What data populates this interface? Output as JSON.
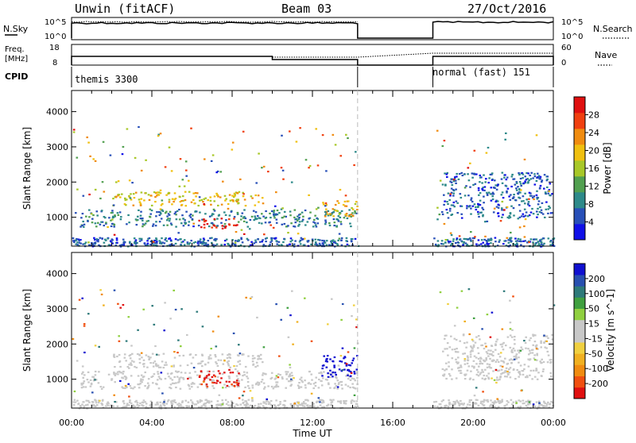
{
  "header": {
    "station": "Unwin (fitACF)",
    "beam": "Beam 03",
    "date": "27/Oct/2016"
  },
  "noise_panel": {
    "left_label": "N.Sky",
    "right_label": "N.Search",
    "left_ticks": [
      "10^5",
      "10^0"
    ],
    "right_ticks": [
      "10^5",
      "10^0"
    ],
    "gap_start_hour": 14.25,
    "gap_end_hour": 18.0
  },
  "freq_panel": {
    "left_label_1": "Freq.",
    "left_label_2": "[MHz]",
    "right_label": "Nave",
    "left_ticks": [
      "18",
      "8"
    ],
    "right_ticks": [
      "60",
      "0"
    ]
  },
  "cpid_panel": {
    "label": "CPID",
    "segments": [
      {
        "text": "themis 3300",
        "start_hour": 0,
        "end_hour": 14.25
      },
      {
        "text": "normal (fast) 151",
        "start_hour": 18.0,
        "end_hour": 24
      }
    ]
  },
  "time_axis": {
    "label": "Time UT",
    "ticks": [
      "00:00",
      "04:00",
      "08:00",
      "12:00",
      "16:00",
      "20:00",
      "00:00"
    ]
  },
  "chart_data": [
    {
      "type": "heatmap",
      "name": "power",
      "ylabel": "Slant Range [km]",
      "xlim": [
        0,
        24
      ],
      "ylim": [
        180,
        4600
      ],
      "yticks": [
        "1000",
        "2000",
        "3000",
        "4000"
      ],
      "colorbar": {
        "label": "Power [dB]",
        "ticks": [
          "4",
          "8",
          "12",
          "16",
          "20",
          "24",
          "28"
        ],
        "range": [
          0,
          30
        ],
        "colors": [
          "#1010e8",
          "#2850b8",
          "#2e8a8a",
          "#52a050",
          "#a8c828",
          "#f0c010",
          "#f08c10",
          "#f04010",
          "#e01010"
        ]
      },
      "features": [
        {
          "x0": 0.4,
          "x1": 14.2,
          "y0": 750,
          "y1": 1250,
          "level": 8
        },
        {
          "x0": 2.0,
          "x1": 9.5,
          "y0": 1350,
          "y1": 1750,
          "level": 18
        },
        {
          "x0": 6.3,
          "x1": 8.3,
          "y0": 700,
          "y1": 1000,
          "level": 28
        },
        {
          "x0": 12.4,
          "x1": 14.2,
          "y0": 1050,
          "y1": 1500,
          "level": 20
        },
        {
          "x0": 18.4,
          "x1": 23.9,
          "y0": 1000,
          "y1": 2300,
          "level": 6
        }
      ]
    },
    {
      "type": "heatmap",
      "name": "velocity",
      "ylabel": "Slant Range [km]",
      "xlim": [
        0,
        24
      ],
      "ylim": [
        180,
        4600
      ],
      "yticks": [
        "1000",
        "2000",
        "3000",
        "4000"
      ],
      "colorbar": {
        "label": "Velocity [m s^-1]",
        "ticks": [
          "200",
          "100",
          "50",
          "15",
          "-15",
          "-50",
          "-100",
          "-200"
        ],
        "range": [
          -250,
          250
        ],
        "colors": [
          "#e01010",
          "#f05010",
          "#f08c10",
          "#f0b020",
          "#f0d040",
          "#c8c8c8",
          "#c8c8c8",
          "#90d040",
          "#40a040",
          "#2e7a7a",
          "#2850b0",
          "#1010d0"
        ]
      },
      "features": [
        {
          "x0": 0.4,
          "x1": 14.2,
          "y0": 750,
          "y1": 1250,
          "value": 0
        },
        {
          "x0": 2.0,
          "x1": 9.5,
          "y0": 1350,
          "y1": 1750,
          "value": -10
        },
        {
          "x0": 6.3,
          "x1": 8.3,
          "y0": 800,
          "y1": 1300,
          "value": -220
        },
        {
          "x0": 12.4,
          "x1": 14.2,
          "y0": 1050,
          "y1": 1700,
          "value": 230
        },
        {
          "x0": 18.4,
          "x1": 23.9,
          "y0": 1000,
          "y1": 2300,
          "value": 0
        }
      ]
    }
  ]
}
